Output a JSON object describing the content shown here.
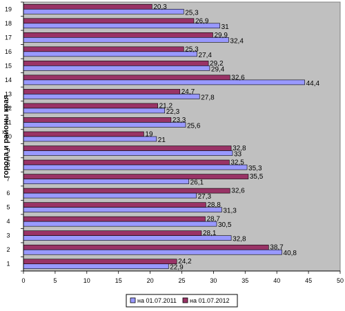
{
  "chart_data": {
    "type": "bar",
    "orientation": "horizontal",
    "ylabel": "города и районы края",
    "xlabel": "",
    "title": "",
    "categories": [
      "1",
      "2",
      "3",
      "4",
      "5",
      "6",
      "7",
      "8",
      "9",
      "10",
      "11",
      "12",
      "13",
      "14",
      "15",
      "16",
      "17",
      "18",
      "19"
    ],
    "xlim": [
      0,
      50
    ],
    "x_ticks": [
      0,
      5,
      10,
      15,
      20,
      25,
      30,
      35,
      40,
      45,
      50
    ],
    "grid": false,
    "plot_background": "#c0c0c0",
    "legend_position": "bottom",
    "series": [
      {
        "name": "на 01.07.2011",
        "color": "#9999ff",
        "values": [
          22.9,
          40.8,
          32.8,
          30.5,
          31.3,
          27.3,
          26.1,
          35.3,
          33,
          21,
          25.6,
          22.3,
          27.8,
          44.4,
          29.4,
          27.4,
          32.4,
          31,
          25.3
        ],
        "labels": [
          "22,9",
          "40,8",
          "32,8",
          "30,5",
          "31,3",
          "27,3",
          "26,1",
          "35,3",
          "33",
          "21",
          "25,6",
          "22,3",
          "27,8",
          "44,4",
          "29,4",
          "27,4",
          "32,4",
          "31",
          "25,3"
        ]
      },
      {
        "name": "на 01.07.2012",
        "color": "#993366",
        "values": [
          24.2,
          38.7,
          28.1,
          28.7,
          28.8,
          32.6,
          35.5,
          32.5,
          32.8,
          19,
          23.3,
          21.2,
          24.7,
          32.6,
          29.2,
          25.3,
          29.9,
          26.9,
          20.3
        ],
        "labels": [
          "24,2",
          "38,7",
          "28,1",
          "28,7",
          "28,8",
          "32,6",
          "35,5",
          "32,5",
          "32,8",
          "19",
          "23,3",
          "21,2",
          "24,7",
          "32,6",
          "29,2",
          "25,3",
          "29,9",
          "26,9",
          "20,3"
        ]
      }
    ]
  }
}
